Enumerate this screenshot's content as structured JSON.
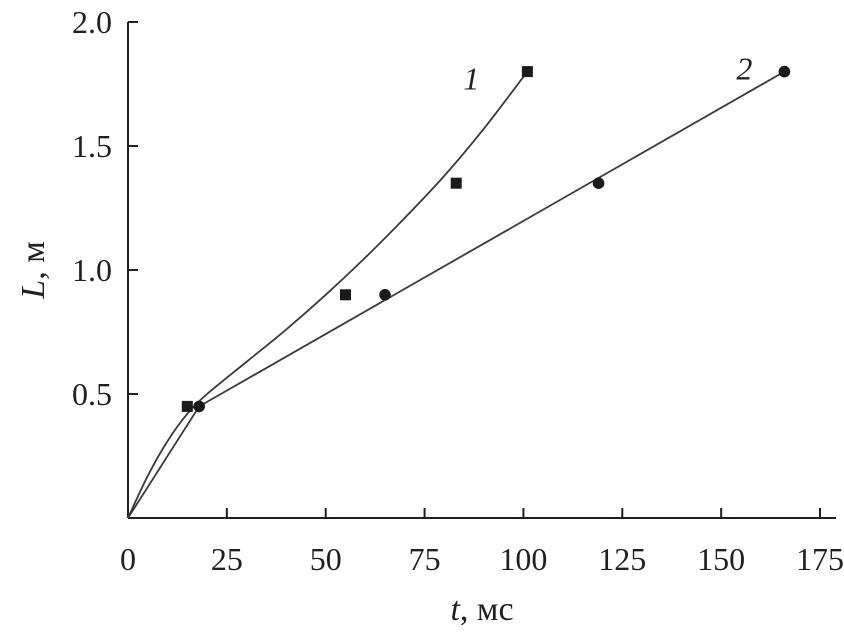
{
  "chart_data": {
    "type": "line",
    "xlabel_var": "t",
    "xlabel_unit": ", мс",
    "ylabel_var": "L",
    "ylabel_unit": ", м",
    "xlim": [
      0,
      180
    ],
    "ylim": [
      0,
      2.0
    ],
    "xticks": [
      0,
      25,
      50,
      75,
      100,
      125,
      150,
      175
    ],
    "yticks": [
      0.5,
      1.0,
      1.5,
      2.0
    ],
    "xtick_labels": [
      "0",
      "25",
      "50",
      "75",
      "100",
      "125",
      "150",
      "175"
    ],
    "ytick_labels": [
      "0.5",
      "1.0",
      "1.5",
      "2.0"
    ],
    "grid": false,
    "legend": "none",
    "series": [
      {
        "name": "1",
        "marker": "square",
        "fit": "curve",
        "x": [
          15,
          55,
          83,
          101
        ],
        "y": [
          0.45,
          0.9,
          1.35,
          1.8
        ],
        "curve_x": [
          0,
          5,
          10,
          15,
          20,
          30,
          40,
          50,
          60,
          70,
          80,
          90,
          101
        ],
        "curve_y": [
          0,
          0.17,
          0.31,
          0.42,
          0.5,
          0.63,
          0.76,
          0.9,
          1.05,
          1.21,
          1.38,
          1.57,
          1.8
        ]
      },
      {
        "name": "2",
        "marker": "circle",
        "fit": "line",
        "x": [
          18,
          65,
          119,
          166
        ],
        "y": [
          0.45,
          0.9,
          1.35,
          1.8
        ],
        "curve_x": [
          0,
          18,
          166
        ],
        "curve_y": [
          0,
          0.45,
          1.8
        ]
      }
    ]
  }
}
